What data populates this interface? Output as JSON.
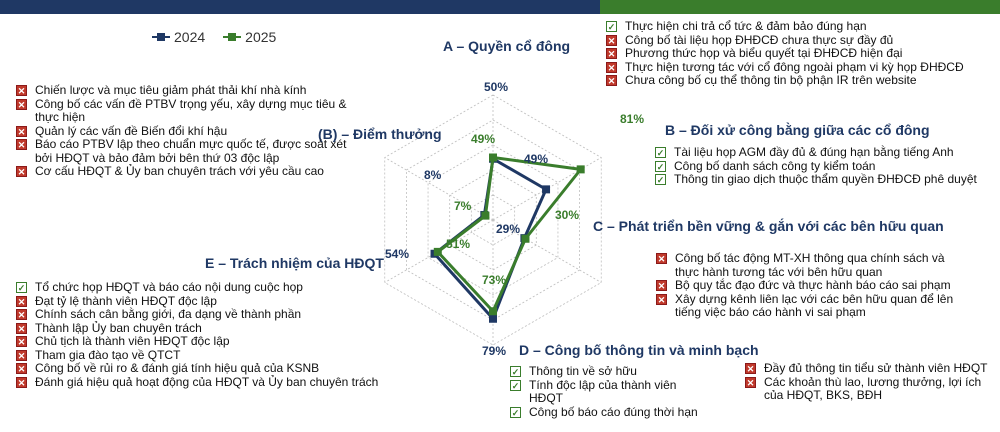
{
  "colors": {
    "s2024": "#1f3864",
    "s2025": "#3a7d2c",
    "cross": "#c0392b",
    "grid": "#bfbfbf"
  },
  "legend": {
    "s2024": "2024",
    "s2025": "2025"
  },
  "chart_data": {
    "type": "radar",
    "categories": [
      "A – Quyền cổ đông",
      "B – Đối xử công bằng giữa các cổ đông",
      "C – Phát triển bền vững & gắn với các bên hữu quan",
      "D – Công bố thông tin và minh bạch",
      "E – Trách nhiệm của HĐQT",
      "(B) – Điểm thưởng"
    ],
    "series": [
      {
        "name": "2024",
        "values": [
          49,
          49,
          29,
          79,
          54,
          8
        ],
        "labels": [
          "",
          "49%",
          "29%",
          "79%",
          "54%",
          "8%"
        ]
      },
      {
        "name": "2025",
        "values": [
          50,
          81,
          30,
          73,
          51,
          7
        ],
        "labels": [
          "50%",
          "81%",
          "30%",
          "73%",
          "51%",
          "7%"
        ]
      }
    ],
    "ylim": [
      0,
      100
    ],
    "grid": true
  },
  "sections": {
    "A": {
      "title": "A – Quyền cổ đông",
      "items": [
        {
          "icon": "check",
          "text": "Thực hiện chi trả cổ tức & đảm bảo đúng hạn"
        },
        {
          "icon": "cross",
          "text": "Công bố tài liệu họp ĐHĐCĐ chưa thực sự đầy đủ"
        },
        {
          "icon": "cross",
          "text": "Phương thức họp và biểu quyết tại ĐHĐCĐ hiện đại"
        },
        {
          "icon": "cross",
          "text": "Thực hiện tương tác với cổ đông ngoài phạm vi kỳ họp ĐHĐCĐ"
        },
        {
          "icon": "cross",
          "text": "Chưa công bố cụ thể thông tin bộ phận IR trên website"
        }
      ]
    },
    "B": {
      "title": "B – Đối xử công bằng giữa các cổ đông",
      "items": [
        {
          "icon": "check",
          "text": "Tài liệu họp AGM đầy đủ & đúng hạn bằng tiếng Anh"
        },
        {
          "icon": "check",
          "text": "Công bố danh sách công ty kiểm toán"
        },
        {
          "icon": "check",
          "text": "Thông tin giao dịch thuộc thẩm quyền ĐHĐCĐ phê duyệt"
        }
      ]
    },
    "C": {
      "title": "C – Phát triển bền vững & gắn với các bên hữu quan",
      "items": [
        {
          "icon": "cross",
          "text": "Công bố tác động MT-XH thông qua chính sách và thực hành tương tác với bên hữu quan"
        },
        {
          "icon": "cross",
          "text": "Bộ quy tắc đạo đức và thực hành báo cáo sai phạm"
        },
        {
          "icon": "cross",
          "text": "Xây dựng kênh liên lạc với các bên hữu quan để lên tiếng việc báo cáo hành vi sai phạm"
        }
      ]
    },
    "D": {
      "title": "D – Công bố thông tin và minh bạch",
      "items_left": [
        {
          "icon": "check",
          "text": "Thông tin về sở hữu"
        },
        {
          "icon": "check",
          "text": "Tính độc lập của thành viên HĐQT"
        },
        {
          "icon": "check",
          "text": "Công bố báo cáo đúng thời hạn"
        }
      ],
      "items_right": [
        {
          "icon": "cross",
          "text": "Đầy đủ thông tin tiểu sử thành viên HĐQT"
        },
        {
          "icon": "cross",
          "text": "Các khoản thù lao, lương thưởng, lợi ích của HĐQT, BKS, BĐH"
        }
      ]
    },
    "E": {
      "title": "E – Trách nhiệm của HĐQT",
      "items": [
        {
          "icon": "check",
          "text": "Tổ chức họp HĐQT và báo cáo nội dung cuộc họp"
        },
        {
          "icon": "cross",
          "text": "Đạt tỷ lệ thành viên HĐQT độc lập"
        },
        {
          "icon": "cross",
          "text": "Chính sách cân bằng giới, đa dạng về thành phần"
        },
        {
          "icon": "cross",
          "text": "Thành lập Ủy ban chuyên trách"
        },
        {
          "icon": "cross",
          "text": "Chủ tịch là thành viên HĐQT độc lập"
        },
        {
          "icon": "cross",
          "text": "Tham gia đào tạo về QTCT"
        },
        {
          "icon": "cross",
          "text": "Công bố về rủi ro & đánh giá tính hiệu quả của KSNB"
        },
        {
          "icon": "cross",
          "text": "Đánh giá hiệu quả hoạt động của HĐQT và Ủy ban chuyên trách"
        }
      ]
    },
    "BB": {
      "title": "(B) – Điểm thưởng",
      "items": [
        {
          "icon": "cross",
          "text": "Chiến lược và mục tiêu giảm phát thải khí nhà kính"
        },
        {
          "icon": "cross",
          "text": "Công bố các vấn đề PTBV trọng yếu, xây dựng mục tiêu & thực hiện"
        },
        {
          "icon": "cross",
          "text": "Quản lý các vấn đề Biến đổi khí hậu"
        },
        {
          "icon": "cross",
          "text": "Báo cáo PTBV lập theo chuẩn mực quốc tế, được soát xét bởi HĐQT và bảo đảm bởi bên thứ 03 độc lập"
        },
        {
          "icon": "cross",
          "text": "Cơ cấu HĐQT & Ủy ban chuyên trách với yêu cầu cao"
        }
      ]
    }
  }
}
